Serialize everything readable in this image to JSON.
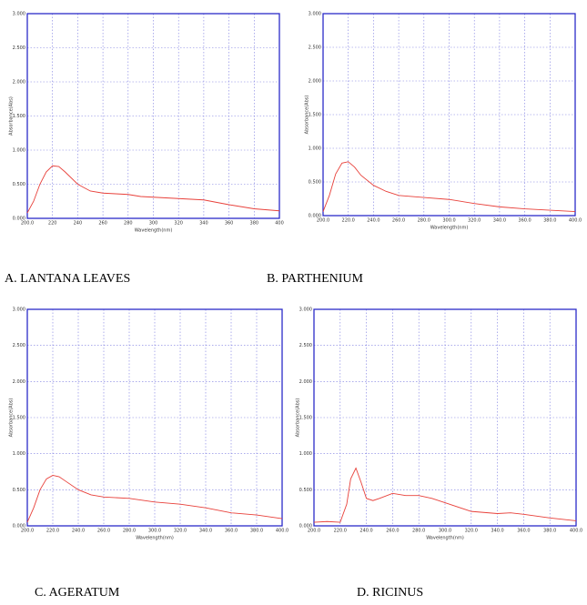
{
  "chart_data": [
    {
      "type": "line",
      "caption": "A. LANTANA LEAVES",
      "xlabel": "Wavelength(nm)",
      "ylabel": "Absorbance(Abs)",
      "color": "#e8403a",
      "grid": true,
      "x": [
        200,
        205,
        210,
        215,
        220,
        225,
        230,
        240,
        250,
        260,
        270,
        280,
        290,
        300,
        320,
        340,
        360,
        380,
        400
      ],
      "values": [
        0.08,
        0.25,
        0.5,
        0.68,
        0.77,
        0.76,
        0.68,
        0.5,
        0.4,
        0.37,
        0.36,
        0.35,
        0.32,
        0.31,
        0.29,
        0.27,
        0.2,
        0.14,
        0.11
      ],
      "xlim": [
        200,
        400
      ],
      "ylim": [
        0,
        3
      ],
      "xticks": [
        {
          "value": 200,
          "label": "200.0"
        },
        220,
        240,
        260,
        280,
        300,
        320,
        340,
        360,
        380,
        400
      ],
      "yticks": [
        {
          "value": 0,
          "label": "0.000"
        },
        {
          "value": 0.5,
          "label": "0.500"
        },
        {
          "value": 1,
          "label": "1.000"
        },
        {
          "value": 1.5,
          "label": "1.500"
        },
        {
          "value": 2,
          "label": "2.000"
        },
        {
          "value": 2.5,
          "label": "2.500"
        },
        {
          "value": 3,
          "label": "3.000"
        }
      ]
    },
    {
      "type": "line",
      "caption": "B. PARTHENIUM",
      "xlabel": "Wavelength(nm)",
      "ylabel": "Absorbance(Abs)",
      "color": "#e8403a",
      "grid": true,
      "x": [
        200,
        205,
        210,
        215,
        220,
        225,
        230,
        240,
        250,
        260,
        280,
        300,
        320,
        340,
        360,
        380,
        400
      ],
      "values": [
        0.06,
        0.3,
        0.62,
        0.78,
        0.8,
        0.72,
        0.6,
        0.45,
        0.36,
        0.3,
        0.27,
        0.24,
        0.18,
        0.13,
        0.1,
        0.08,
        0.06
      ],
      "xlim": [
        200,
        400
      ],
      "ylim": [
        0,
        3
      ],
      "xticks": [
        {
          "value": 200,
          "label": "200.0"
        },
        {
          "value": 220,
          "label": "220.0"
        },
        {
          "value": 240,
          "label": "240.0"
        },
        {
          "value": 260,
          "label": "260.0"
        },
        {
          "value": 280,
          "label": "280.0"
        },
        {
          "value": 300,
          "label": "300.0"
        },
        {
          "value": 320,
          "label": "320.0"
        },
        {
          "value": 340,
          "label": "340.0"
        },
        {
          "value": 360,
          "label": "360.0"
        },
        {
          "value": 380,
          "label": "380.0"
        },
        {
          "value": 400,
          "label": "400.0"
        }
      ],
      "yticks": [
        {
          "value": 0,
          "label": "0.000"
        },
        {
          "value": 0.5,
          "label": "0.500"
        },
        {
          "value": 1,
          "label": "1.000"
        },
        {
          "value": 1.5,
          "label": "1.500"
        },
        {
          "value": 2,
          "label": "2.000"
        },
        {
          "value": 2.5,
          "label": "2.500"
        },
        {
          "value": 3,
          "label": "3.000"
        }
      ]
    },
    {
      "type": "line",
      "caption": "C.  AGERATUM",
      "xlabel": "Wavelength(nm)",
      "ylabel": "Absorbance(Abs)",
      "color": "#e8403a",
      "grid": true,
      "x": [
        200,
        205,
        210,
        215,
        220,
        225,
        230,
        240,
        250,
        260,
        280,
        300,
        320,
        340,
        360,
        380,
        400
      ],
      "values": [
        0.05,
        0.25,
        0.5,
        0.65,
        0.7,
        0.68,
        0.62,
        0.5,
        0.43,
        0.4,
        0.38,
        0.33,
        0.3,
        0.25,
        0.18,
        0.15,
        0.1
      ],
      "xlim": [
        200,
        400
      ],
      "ylim": [
        0,
        3
      ],
      "xticks": [
        {
          "value": 200,
          "label": "200.0"
        },
        {
          "value": 220,
          "label": "220.0"
        },
        {
          "value": 240,
          "label": "240.0"
        },
        {
          "value": 260,
          "label": "260.0"
        },
        {
          "value": 280,
          "label": "280.0"
        },
        {
          "value": 300,
          "label": "300.0"
        },
        {
          "value": 320,
          "label": "320.0"
        },
        {
          "value": 340,
          "label": "340.0"
        },
        {
          "value": 360,
          "label": "360.0"
        },
        {
          "value": 380,
          "label": "380.0"
        },
        {
          "value": 400,
          "label": "400.0"
        }
      ],
      "yticks": [
        {
          "value": 0,
          "label": "0.000"
        },
        {
          "value": 0.5,
          "label": "0.500"
        },
        {
          "value": 1,
          "label": "1.000"
        },
        {
          "value": 1.5,
          "label": "1.500"
        },
        {
          "value": 2,
          "label": "2.000"
        },
        {
          "value": 2.5,
          "label": "2.500"
        },
        {
          "value": 3,
          "label": "3.000"
        }
      ]
    },
    {
      "type": "line",
      "caption": "D. RICINUS",
      "xlabel": "Wavelength(nm)",
      "ylabel": "Absorbance(Abs)",
      "color": "#e8403a",
      "grid": true,
      "x": [
        200,
        210,
        220,
        225,
        228,
        232,
        236,
        240,
        245,
        250,
        260,
        270,
        280,
        290,
        300,
        320,
        340,
        350,
        360,
        380,
        400
      ],
      "values": [
        0.05,
        0.06,
        0.05,
        0.3,
        0.65,
        0.8,
        0.6,
        0.38,
        0.35,
        0.38,
        0.45,
        0.42,
        0.42,
        0.38,
        0.32,
        0.2,
        0.17,
        0.18,
        0.16,
        0.11,
        0.07
      ],
      "xlim": [
        200,
        400
      ],
      "ylim": [
        0,
        3
      ],
      "xticks": [
        {
          "value": 200,
          "label": "200.0"
        },
        {
          "value": 220,
          "label": "220.0"
        },
        {
          "value": 240,
          "label": "240.0"
        },
        {
          "value": 260,
          "label": "260.0"
        },
        {
          "value": 280,
          "label": "280.0"
        },
        {
          "value": 300,
          "label": "300.0"
        },
        {
          "value": 320,
          "label": "320.0"
        },
        {
          "value": 340,
          "label": "340.0"
        },
        {
          "value": 360,
          "label": "360.0"
        },
        {
          "value": 380,
          "label": "380.0"
        },
        {
          "value": 400,
          "label": "400.0"
        }
      ],
      "yticks": [
        {
          "value": 0,
          "label": "0.000"
        },
        {
          "value": 0.5,
          "label": "0.500"
        },
        {
          "value": 1,
          "label": "1.000"
        },
        {
          "value": 1.5,
          "label": "1.500"
        },
        {
          "value": 2,
          "label": "2.000"
        },
        {
          "value": 2.5,
          "label": "2.500"
        },
        {
          "value": 3,
          "label": "3.000"
        }
      ]
    }
  ]
}
